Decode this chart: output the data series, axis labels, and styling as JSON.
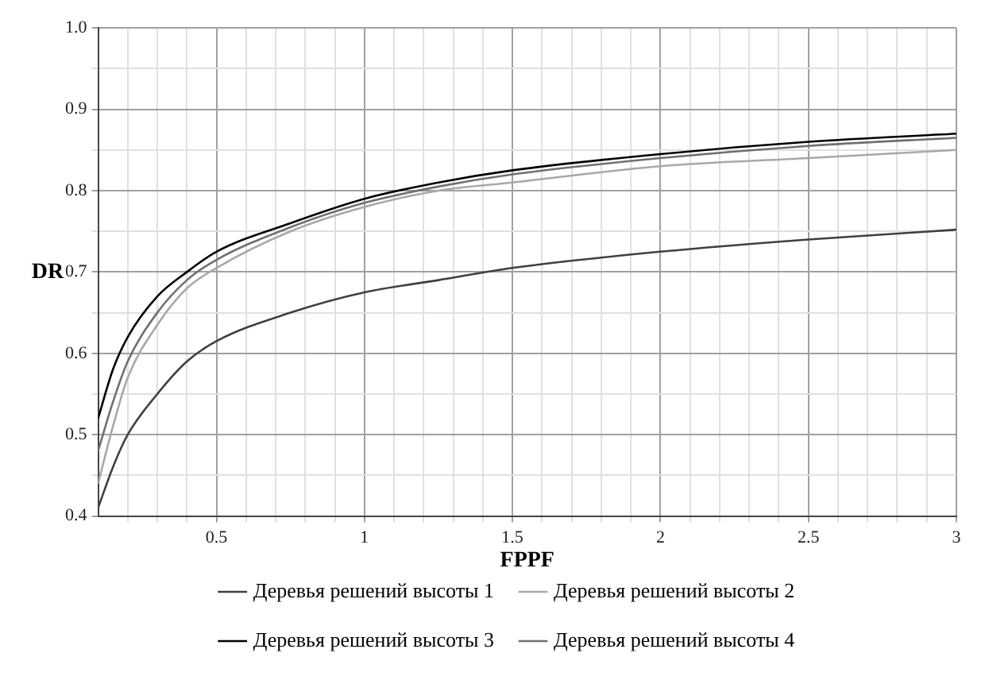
{
  "chart_data": {
    "type": "line",
    "xlabel": "FPPF",
    "ylabel": "DR",
    "xlim": [
      0.1,
      3
    ],
    "xticks": [
      {
        "value": 0.2,
        "label": null
      },
      {
        "value": 0.3,
        "label": null
      },
      {
        "value": 0.4,
        "label": null
      },
      0.5,
      {
        "value": 0.6,
        "label": null
      },
      {
        "value": 0.7,
        "label": null
      },
      {
        "value": 0.8,
        "label": null
      },
      {
        "value": 0.9,
        "label": null
      },
      1,
      {
        "value": 1.1,
        "label": null
      },
      {
        "value": 1.2,
        "label": null
      },
      {
        "value": 1.3,
        "label": null
      },
      {
        "value": 1.4,
        "label": null
      },
      1.5,
      {
        "value": 1.6,
        "label": null
      },
      {
        "value": 1.7,
        "label": null
      },
      {
        "value": 1.8,
        "label": null
      },
      {
        "value": 1.9,
        "label": null
      },
      2,
      {
        "value": 2.1,
        "label": null
      },
      {
        "value": 2.2,
        "label": null
      },
      {
        "value": 2.3,
        "label": null
      },
      {
        "value": 2.4,
        "label": null
      },
      2.5,
      {
        "value": 2.6,
        "label": null
      },
      {
        "value": 2.7,
        "label": null
      },
      {
        "value": 2.8,
        "label": null
      },
      {
        "value": 2.9,
        "label": null
      },
      3
    ],
    "ylim": [
      0.4,
      1.0
    ],
    "yticks": [
      0.4,
      {
        "value": 0.45,
        "label": null
      },
      0.5,
      {
        "value": 0.55,
        "label": null
      },
      0.6,
      {
        "value": 0.65,
        "label": null
      },
      0.7,
      {
        "value": 0.75,
        "label": null
      },
      0.8,
      {
        "value": 0.85,
        "label": null
      },
      0.9,
      {
        "value": 0.95,
        "label": null
      },
      {
        "value": 1.0,
        "label": "1.0"
      }
    ],
    "x": [
      0.1,
      0.15,
      0.2,
      0.3,
      0.4,
      0.5,
      0.75,
      1,
      1.25,
      1.5,
      2,
      2.5,
      3
    ],
    "grid": true,
    "legend": "bottom",
    "marker": "none",
    "line_style": "solid",
    "series": [
      {
        "name": "Деревья решений высоты 1",
        "color": "#404040",
        "values": [
          0.41,
          0.46,
          0.5,
          0.55,
          0.59,
          0.615,
          0.65,
          0.675,
          0.69,
          0.705,
          0.725,
          0.74,
          0.752
        ]
      },
      {
        "name": "Деревья решений высоты 2",
        "color": "#a8a8a8",
        "values": [
          0.44,
          0.51,
          0.57,
          0.635,
          0.68,
          0.705,
          0.75,
          0.78,
          0.8,
          0.81,
          0.83,
          0.84,
          0.85
        ]
      },
      {
        "name": "Деревья решений высоты 3",
        "color": "#000000",
        "values": [
          0.52,
          0.58,
          0.62,
          0.67,
          0.7,
          0.725,
          0.76,
          0.79,
          0.81,
          0.825,
          0.845,
          0.86,
          0.87
        ]
      },
      {
        "name": "Деревья решений высоты 4",
        "color": "#707070",
        "values": [
          0.48,
          0.54,
          0.59,
          0.65,
          0.69,
          0.715,
          0.755,
          0.785,
          0.805,
          0.82,
          0.84,
          0.855,
          0.865
        ]
      }
    ]
  }
}
